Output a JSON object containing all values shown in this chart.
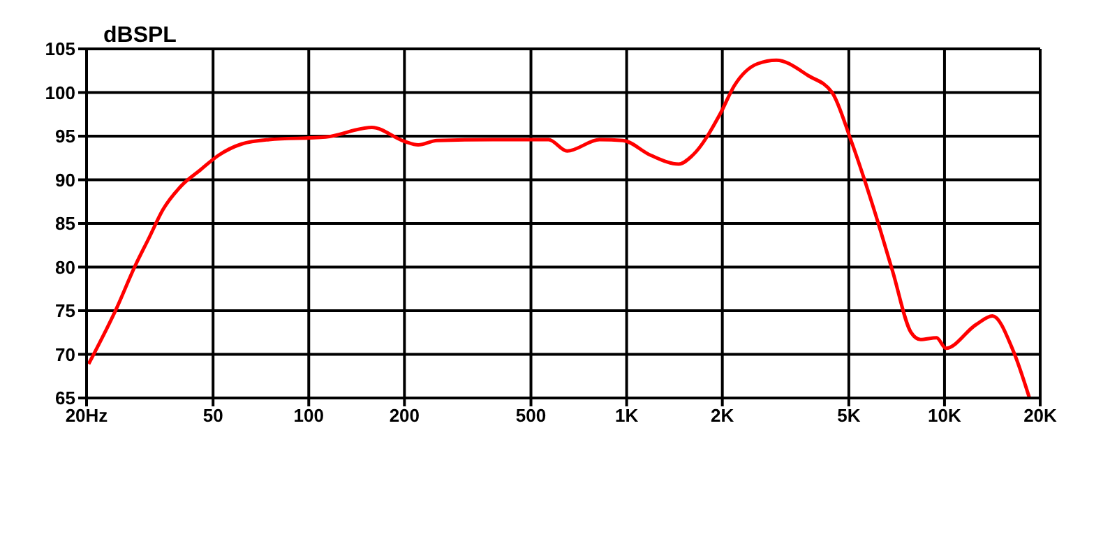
{
  "chart_data": {
    "type": "line",
    "ylabel": "dBSPL",
    "x": [
      20.3,
      24.8,
      28.4,
      31.4,
      34.8,
      39.7,
      45.5,
      52,
      61.5,
      75,
      113,
      158,
      200,
      221,
      253,
      379,
      531,
      568,
      650,
      822,
      974,
      1192,
      1458,
      1612,
      1972,
      2183,
      2583,
      2958,
      3742,
      4430,
      5070,
      6000,
      6857,
      7850,
      8400,
      9440,
      10100,
      12560,
      14150,
      16450,
      18500
    ],
    "series": [
      {
        "color": "#ff0000",
        "values": [
          68.9,
          75.2,
          80.1,
          83.3,
          86.6,
          89.3,
          91.1,
          92.8,
          94.1,
          94.6,
          94.9,
          96.0,
          94.4,
          94.0,
          94.5,
          94.6,
          94.6,
          94.6,
          93.3,
          94.6,
          94.5,
          92.8,
          91.8,
          92.8,
          97.6,
          100.8,
          103.3,
          103.7,
          101.9,
          100.0,
          94.6,
          86.6,
          79.6,
          72.5,
          71.7,
          71.9,
          70.7,
          73.4,
          74.4,
          70.4,
          65
        ]
      }
    ],
    "log": "x",
    "xlim": [
      20,
      20000
    ],
    "xticks": [
      {
        "value": 20,
        "label": "20Hz"
      },
      50,
      100,
      200,
      500,
      {
        "value": 1000,
        "label": "1K"
      },
      {
        "value": 2000,
        "label": "2K"
      },
      {
        "value": 5000,
        "label": "5K"
      },
      {
        "value": 10000,
        "label": "10K"
      },
      {
        "value": 20000,
        "label": "20K"
      }
    ],
    "ylim": [
      65,
      105
    ],
    "yticks": [
      65,
      70,
      75,
      80,
      85,
      90,
      95,
      100,
      105
    ],
    "grid": true,
    "marker": "none",
    "line_style": "solid",
    "legend": false
  }
}
